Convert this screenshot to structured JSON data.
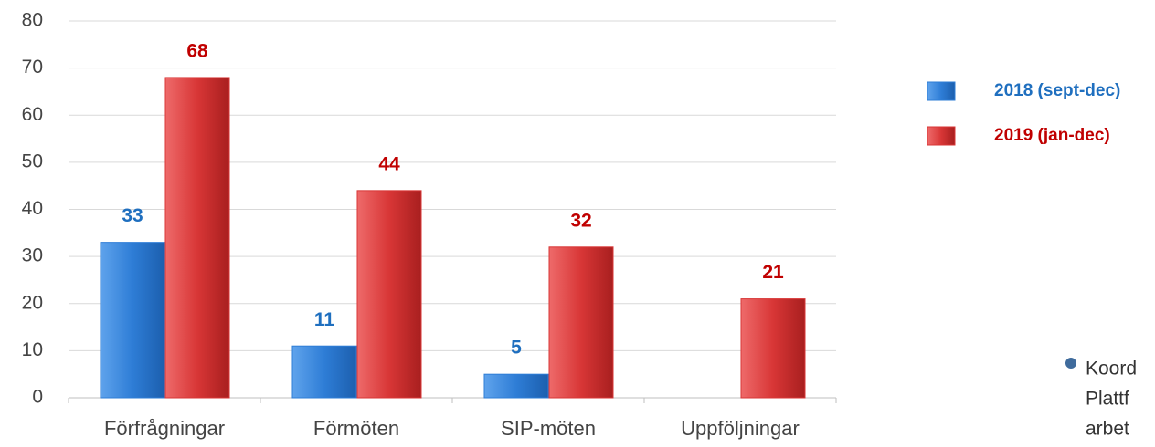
{
  "chart_data": {
    "type": "bar",
    "categories": [
      "Förfrågningar",
      "Förmöten",
      "SIP-möten",
      "Uppföljningar"
    ],
    "series": [
      {
        "name": "2018 (sept-dec)",
        "color": "#2e7dd6",
        "label_color": "#1f6fbf",
        "values": [
          33,
          11,
          5,
          null
        ]
      },
      {
        "name": "2019 (jan-dec)",
        "color": "#d83636",
        "label_color": "#c00000",
        "values": [
          68,
          44,
          32,
          21
        ]
      }
    ],
    "ylim": [
      0,
      80
    ],
    "yticks": [
      0,
      10,
      20,
      30,
      40,
      50,
      60,
      70,
      80
    ],
    "grid": true,
    "legend": "right",
    "annotations": [
      "Koord",
      "Plattf",
      "arbet"
    ]
  }
}
